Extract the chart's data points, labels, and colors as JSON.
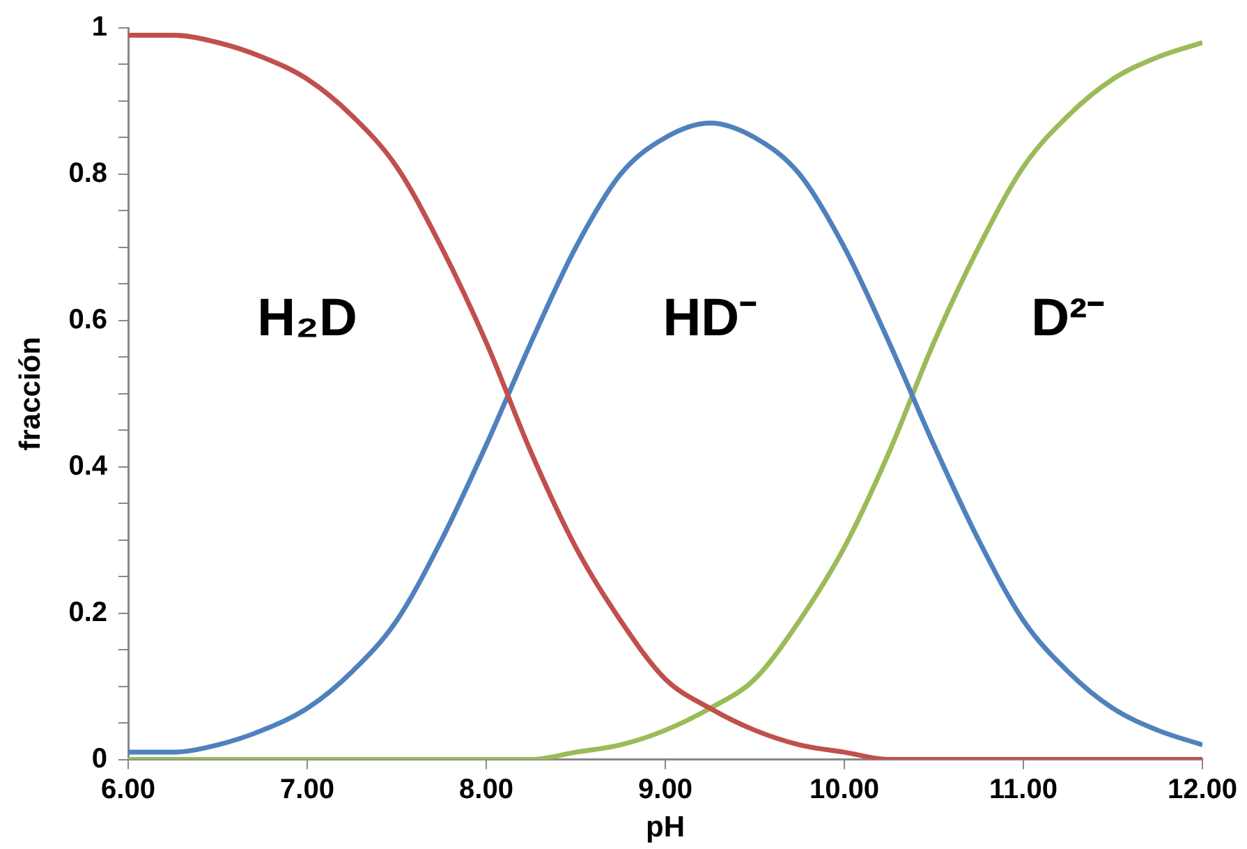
{
  "chart_data": {
    "type": "line",
    "xlabel": "pH",
    "ylabel": "fracción",
    "x": [
      6,
      6.25,
      6.5,
      6.75,
      7,
      7.25,
      7.5,
      7.75,
      8,
      8.25,
      8.5,
      8.75,
      9,
      9.25,
      9.5,
      9.75,
      10,
      10.25,
      10.5,
      10.75,
      11,
      11.25,
      11.5,
      11.75,
      12
    ],
    "series": [
      {
        "name": "H₂D",
        "color": "#c0504d",
        "values": [
          0.99,
          0.99,
          0.98,
          0.96,
          0.93,
          0.88,
          0.81,
          0.7,
          0.57,
          0.42,
          0.29,
          0.19,
          0.11,
          0.07,
          0.04,
          0.02,
          0.01,
          0,
          0,
          0,
          0,
          0,
          0,
          0,
          0
        ]
      },
      {
        "name": "HD⁻",
        "color": "#4f81bd",
        "values": [
          0.01,
          0.01,
          0.02,
          0.04,
          0.07,
          0.12,
          0.19,
          0.3,
          0.43,
          0.57,
          0.7,
          0.8,
          0.85,
          0.87,
          0.85,
          0.8,
          0.7,
          0.57,
          0.43,
          0.3,
          0.19,
          0.12,
          0.07,
          0.04,
          0.02
        ]
      },
      {
        "name": "D²⁻",
        "color": "#9bbb59",
        "values": [
          0,
          0,
          0,
          0,
          0,
          0,
          0,
          0,
          0,
          0,
          0.01,
          0.02,
          0.04,
          0.07,
          0.11,
          0.19,
          0.29,
          0.42,
          0.57,
          0.7,
          0.81,
          0.88,
          0.93,
          0.96,
          0.98
        ]
      }
    ],
    "xlim": [
      6,
      12
    ],
    "xticks": [
      {
        "value": 6,
        "label": "6.00"
      },
      {
        "value": 7,
        "label": "7.00"
      },
      {
        "value": 8,
        "label": "8.00"
      },
      {
        "value": 9,
        "label": "9.00"
      },
      {
        "value": 10,
        "label": "10.00"
      },
      {
        "value": 11,
        "label": "11.00"
      },
      {
        "value": 12,
        "label": "12.00"
      }
    ],
    "ylim": [
      0,
      1
    ],
    "yticks": [
      0,
      {
        "value": 0.05,
        "label": null
      },
      {
        "value": 0.1,
        "label": null
      },
      {
        "value": 0.15,
        "label": null
      },
      0.2,
      {
        "value": 0.25,
        "label": null
      },
      {
        "value": 0.3,
        "label": null
      },
      {
        "value": 0.35,
        "label": null
      },
      0.4,
      {
        "value": 0.45,
        "label": null
      },
      {
        "value": 0.5,
        "label": null
      },
      {
        "value": 0.55,
        "label": null
      },
      0.6,
      {
        "value": 0.65,
        "label": null
      },
      {
        "value": 0.7,
        "label": null
      },
      {
        "value": 0.75,
        "label": null
      },
      0.8,
      {
        "value": 0.85,
        "label": null
      },
      {
        "value": 0.9,
        "label": null
      },
      {
        "value": 0.95,
        "label": null
      },
      1
    ],
    "grid": false,
    "legend": false,
    "marker": "none",
    "line_style": "solid"
  }
}
